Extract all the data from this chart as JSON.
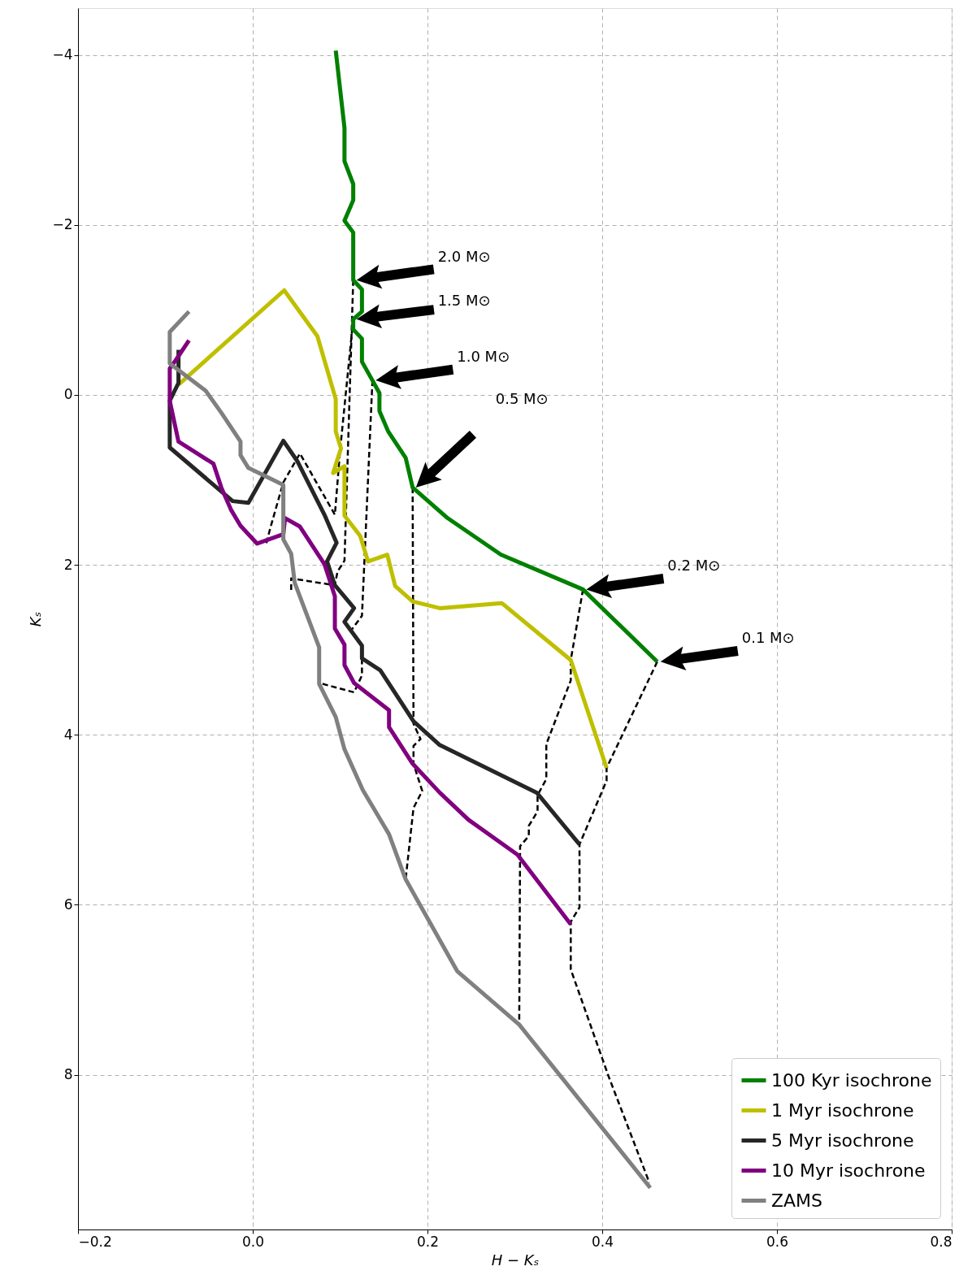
{
  "chart_data": {
    "type": "line",
    "xlabel": "H − Kₛ",
    "ylabel": "Kₛ",
    "xlim": [
      -0.2,
      0.8
    ],
    "ylim": [
      9.82,
      -4.55
    ],
    "xticks": [
      {
        "value": -0.2,
        "label": "−0.2"
      },
      {
        "value": 0,
        "label": "0.0"
      },
      {
        "value": 0.2,
        "label": "0.2"
      },
      {
        "value": 0.4,
        "label": "0.4"
      },
      {
        "value": 0.6,
        "label": "0.6"
      },
      {
        "value": 0.8,
        "label": "0.8"
      }
    ],
    "yticks": [
      {
        "value": -4,
        "label": "−4"
      },
      {
        "value": -2,
        "label": "−2"
      },
      {
        "value": 0,
        "label": "0"
      },
      {
        "value": 2,
        "label": "2"
      },
      {
        "value": 4,
        "label": "4"
      },
      {
        "value": 6,
        "label": "6"
      },
      {
        "value": 8,
        "label": "8"
      }
    ],
    "grid": true,
    "legend": "bottom right",
    "line_style": "solid",
    "marker": "none",
    "series": [
      {
        "name": "100 Kyr isochrone",
        "color": "#008000",
        "x": [
          0.095,
          0.105,
          0.105,
          0.115,
          0.115,
          0.105,
          0.115,
          0.115,
          0.125,
          0.125,
          0.115,
          0.115,
          0.125,
          0.125,
          0.137,
          0.145,
          0.145,
          0.155,
          0.175,
          0.183,
          0.223,
          0.284,
          0.378,
          0.463
        ],
        "values": [
          -4.05,
          -3.14,
          -2.75,
          -2.48,
          -2.29,
          -2.05,
          -1.91,
          -1.35,
          -1.24,
          -0.98,
          -0.89,
          -0.77,
          -0.66,
          -0.39,
          -0.17,
          -0.02,
          0.19,
          0.43,
          0.74,
          1.09,
          1.45,
          1.88,
          2.29,
          3.14
        ]
      },
      {
        "name": "1 Myr isochrone",
        "color": "#bfbf00",
        "x": [
          -0.085,
          0.036,
          0.074,
          0.095,
          0.095,
          0.101,
          0.092,
          0.105,
          0.105,
          0.123,
          0.132,
          0.154,
          0.163,
          0.183,
          0.214,
          0.285,
          0.364,
          0.405
        ],
        "values": [
          -0.12,
          -1.23,
          -0.69,
          0.05,
          0.43,
          0.63,
          0.92,
          0.84,
          1.42,
          1.66,
          1.96,
          1.88,
          2.25,
          2.43,
          2.51,
          2.45,
          3.12,
          4.39
        ]
      },
      {
        "name": "5 Myr isochrone",
        "color": "#262626",
        "x": [
          -0.085,
          -0.085,
          -0.095,
          -0.095,
          -0.023,
          -0.005,
          0.035,
          0.051,
          0.082,
          0.096,
          0.085,
          0.094,
          0.116,
          0.105,
          0.125,
          0.125,
          0.146,
          0.184,
          0.214,
          0.325,
          0.374
        ],
        "values": [
          -0.53,
          -0.14,
          0.07,
          0.62,
          1.25,
          1.27,
          0.54,
          0.78,
          1.41,
          1.74,
          1.96,
          2.24,
          2.51,
          2.67,
          2.95,
          3.1,
          3.24,
          3.84,
          4.12,
          4.68,
          5.29
        ]
      },
      {
        "name": "10 Myr isochrone",
        "color": "#800080",
        "x": [
          -0.073,
          -0.088,
          -0.095,
          -0.095,
          -0.085,
          -0.045,
          -0.036,
          -0.025,
          -0.014,
          0.005,
          0.035,
          0.037,
          0.054,
          0.082,
          0.094,
          0.094,
          0.105,
          0.105,
          0.116,
          0.156,
          0.156,
          0.183,
          0.214,
          0.247,
          0.303,
          0.364
        ],
        "values": [
          -0.64,
          -0.41,
          -0.31,
          0.07,
          0.55,
          0.81,
          1.09,
          1.35,
          1.54,
          1.75,
          1.64,
          1.45,
          1.55,
          1.99,
          2.37,
          2.75,
          2.94,
          3.18,
          3.39,
          3.71,
          3.91,
          4.34,
          4.68,
          5.0,
          5.41,
          6.23
        ]
      },
      {
        "name": "ZAMS",
        "color": "#808080",
        "x": [
          -0.073,
          -0.095,
          -0.095,
          -0.054,
          -0.036,
          -0.014,
          -0.014,
          -0.005,
          0.035,
          0.035,
          0.044,
          0.048,
          0.076,
          0.076,
          0.095,
          0.105,
          0.126,
          0.156,
          0.175,
          0.234,
          0.305,
          0.455
        ],
        "values": [
          -0.98,
          -0.74,
          -0.37,
          -0.05,
          0.21,
          0.55,
          0.71,
          0.86,
          1.06,
          1.7,
          1.87,
          2.21,
          2.97,
          3.4,
          3.79,
          4.17,
          4.65,
          5.17,
          5.7,
          6.78,
          7.41,
          9.33
        ]
      },
      {
        "color": "#000000",
        "line_style": "dashed",
        "x": [
          0.115,
          0.105,
          0.097,
          0.094,
          0.044,
          0.044
        ],
        "values": [
          -1.35,
          1.95,
          2.08,
          2.24,
          2.16,
          2.31
        ]
      },
      {
        "color": "#000000",
        "line_style": "dashed",
        "x": [
          0.115,
          0.1,
          0.094,
          0.054,
          0.035,
          0.02,
          0.015
        ],
        "values": [
          -0.89,
          0.65,
          1.41,
          0.69,
          1.03,
          1.57,
          1.77
        ]
      },
      {
        "color": "#000000",
        "line_style": "dashed",
        "x": [
          0.137,
          0.125,
          0.112,
          0.125,
          0.125,
          0.116,
          0.076
        ],
        "values": [
          -0.17,
          2.6,
          2.78,
          2.95,
          3.3,
          3.5,
          3.39
        ]
      },
      {
        "color": "#000000",
        "line_style": "dashed",
        "x": [
          0.183,
          0.184,
          0.192,
          0.184,
          0.184,
          0.194,
          0.184,
          0.175
        ],
        "values": [
          1.09,
          3.87,
          4.05,
          4.13,
          4.34,
          4.66,
          4.86,
          5.7
        ]
      },
      {
        "color": "#000000",
        "line_style": "dashed",
        "x": [
          0.378,
          0.364,
          0.364,
          0.336,
          0.336,
          0.326,
          0.326,
          0.316,
          0.316,
          0.306,
          0.305
        ],
        "values": [
          2.29,
          3.12,
          3.36,
          4.11,
          4.52,
          4.71,
          4.9,
          5.07,
          5.19,
          5.31,
          7.41
        ]
      },
      {
        "color": "#000000",
        "line_style": "dashed",
        "x": [
          0.463,
          0.405,
          0.405,
          0.374,
          0.374,
          0.364,
          0.364,
          0.407,
          0.454
        ],
        "values": [
          3.14,
          4.39,
          4.54,
          5.29,
          6.03,
          6.2,
          6.76,
          8.01,
          9.27
        ]
      }
    ],
    "annotations": [
      "2.0 M⊙",
      "1.5 M⊙",
      "1.0 M⊙",
      "0.5 M⊙",
      "0.2 M⊙",
      "0.1 M⊙"
    ]
  }
}
